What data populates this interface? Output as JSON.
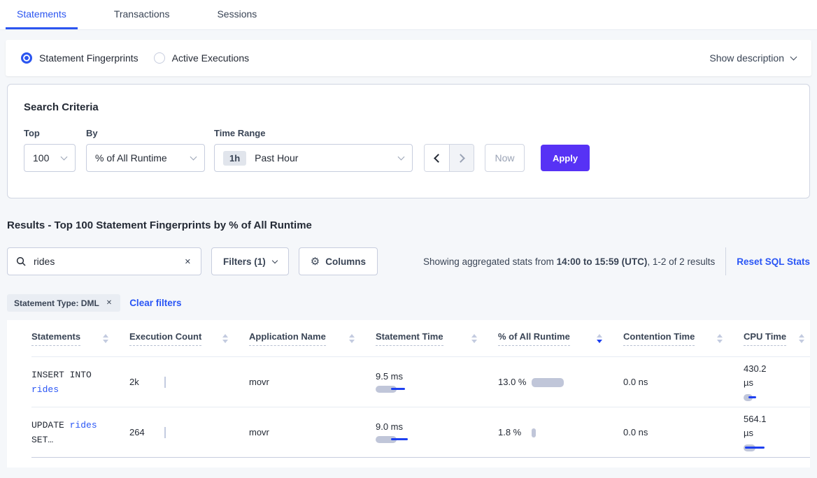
{
  "colors": {
    "accent_blue": "#2b55f0",
    "link_blue": "#2955f5",
    "apply_purple": "#5732f5",
    "bar_gray": "#c0c6d9",
    "bar_blue": "#1e40f0",
    "text_dark": "#242a35",
    "text_slate": "#394455",
    "border_light": "#e7ecf3",
    "border_mid": "#d0d5e2",
    "page_bg": "#f5f7fa"
  },
  "tabs": [
    {
      "label": "Statements",
      "active": true
    },
    {
      "label": "Transactions",
      "active": false
    },
    {
      "label": "Sessions",
      "active": false
    }
  ],
  "view_toggle": {
    "options": [
      {
        "label": "Statement Fingerprints",
        "selected": true
      },
      {
        "label": "Active Executions",
        "selected": false
      }
    ],
    "show_description_label": "Show description"
  },
  "search_criteria": {
    "title": "Search Criteria",
    "top": {
      "label": "Top",
      "value": "100"
    },
    "by": {
      "label": "By",
      "value": "% of All Runtime"
    },
    "time_range": {
      "label": "Time Range",
      "badge": "1h",
      "value": "Past Hour"
    },
    "now_label": "Now",
    "apply_label": "Apply"
  },
  "results": {
    "heading": "Results - Top 100 Statement Fingerprints by % of All Runtime",
    "search_value": "rides",
    "filters_label": "Filters (1)",
    "columns_label": "Columns",
    "summary": {
      "prefix": "Showing aggregated stats from ",
      "bold": "14:00 to 15:59 (UTC)",
      "suffix": ", 1-2 of 2 results"
    },
    "reset_label": "Reset SQL Stats",
    "filter_chip_label": "Statement Type: DML",
    "clear_filters_label": "Clear filters"
  },
  "table": {
    "columns": [
      "Statements",
      "Execution Count",
      "Application Name",
      "Statement Time",
      "% of All Runtime",
      "Contention Time",
      "CPU Time"
    ],
    "sort": {
      "column_index": 4,
      "direction": "desc"
    },
    "rows": [
      {
        "statement_prefix": "INSERT INTO ",
        "statement_link": "rides",
        "statement_suffix": "",
        "execution_count": "2k",
        "application_name": "movr",
        "statement_time": "9.5 ms",
        "pct_of_all_runtime": "13.0 %",
        "contention_time": "0.0 ns",
        "cpu_time": "430.2 µs",
        "bars": {
          "statement_time": {
            "gray_w": 30,
            "blue_l": 22,
            "blue_w": 20
          },
          "pct": {
            "gray_w": 46
          },
          "cpu": {
            "gray_w": 13,
            "blue_l": 7,
            "blue_w": 11
          }
        }
      },
      {
        "statement_prefix": "UPDATE ",
        "statement_link": "rides",
        "statement_suffix": " SET…",
        "execution_count": "264",
        "application_name": "movr",
        "statement_time": "9.0 ms",
        "pct_of_all_runtime": "1.8 %",
        "contention_time": "0.0 ns",
        "cpu_time": "564.1 µs",
        "bars": {
          "statement_time": {
            "gray_w": 30,
            "blue_l": 22,
            "blue_w": 24
          },
          "pct": {
            "gray_w": 6
          },
          "cpu": {
            "gray_w": 17,
            "blue_l": 2,
            "blue_w": 28
          }
        }
      }
    ]
  }
}
